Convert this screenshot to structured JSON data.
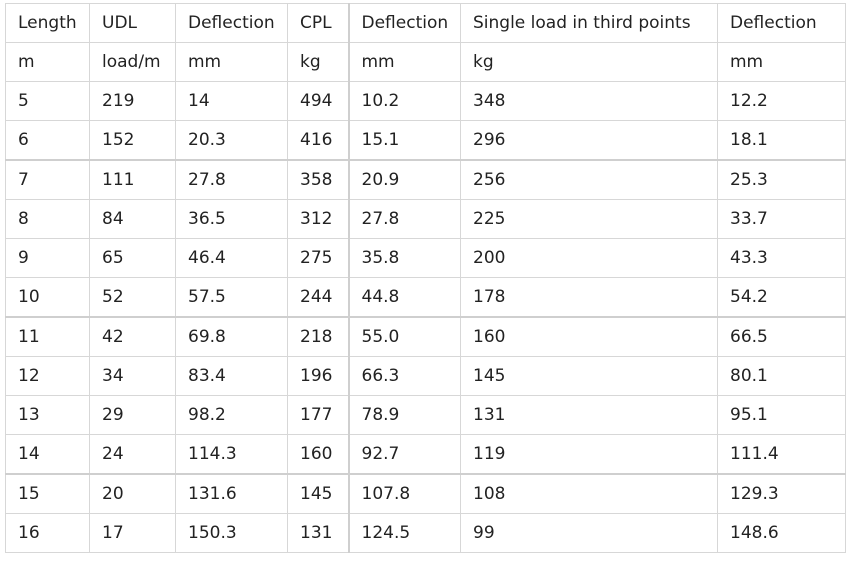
{
  "table": {
    "header_labels": [
      "Length",
      "UDL",
      "Deflection",
      "CPL",
      "Deflection",
      "Single load in third points",
      "Deflection"
    ],
    "unit_labels": [
      "m",
      "load/m",
      "mm",
      "kg",
      "mm",
      "kg",
      "mm"
    ],
    "rows": [
      [
        "5",
        "219",
        "14",
        "494",
        "10.2",
        "348",
        "12.2"
      ],
      [
        "6",
        "152",
        "20.3",
        "416",
        "15.1",
        "296",
        "18.1"
      ],
      [
        "7",
        "111",
        "27.8",
        "358",
        "20.9",
        "256",
        "25.3"
      ],
      [
        "8",
        "84",
        "36.5",
        "312",
        "27.8",
        "225",
        "33.7"
      ],
      [
        "9",
        "65",
        "46.4",
        "275",
        "35.8",
        "200",
        "43.3"
      ],
      [
        "10",
        "52",
        "57.5",
        "244",
        "44.8",
        "178",
        "54.2"
      ],
      [
        "11",
        "42",
        "69.8",
        "218",
        "55.0",
        "160",
        "66.5"
      ],
      [
        "12",
        "34",
        "83.4",
        "196",
        "66.3",
        "145",
        "80.1"
      ],
      [
        "13",
        "29",
        "98.2",
        "177",
        "78.9",
        "131",
        "95.1"
      ],
      [
        "14",
        "24",
        "114.3",
        "160",
        "92.7",
        "119",
        "111.4"
      ],
      [
        "15",
        "20",
        "131.6",
        "145",
        "107.8",
        "108",
        "129.3"
      ],
      [
        "16",
        "17",
        "150.3",
        "131",
        "124.5",
        "99",
        "148.6"
      ]
    ]
  }
}
